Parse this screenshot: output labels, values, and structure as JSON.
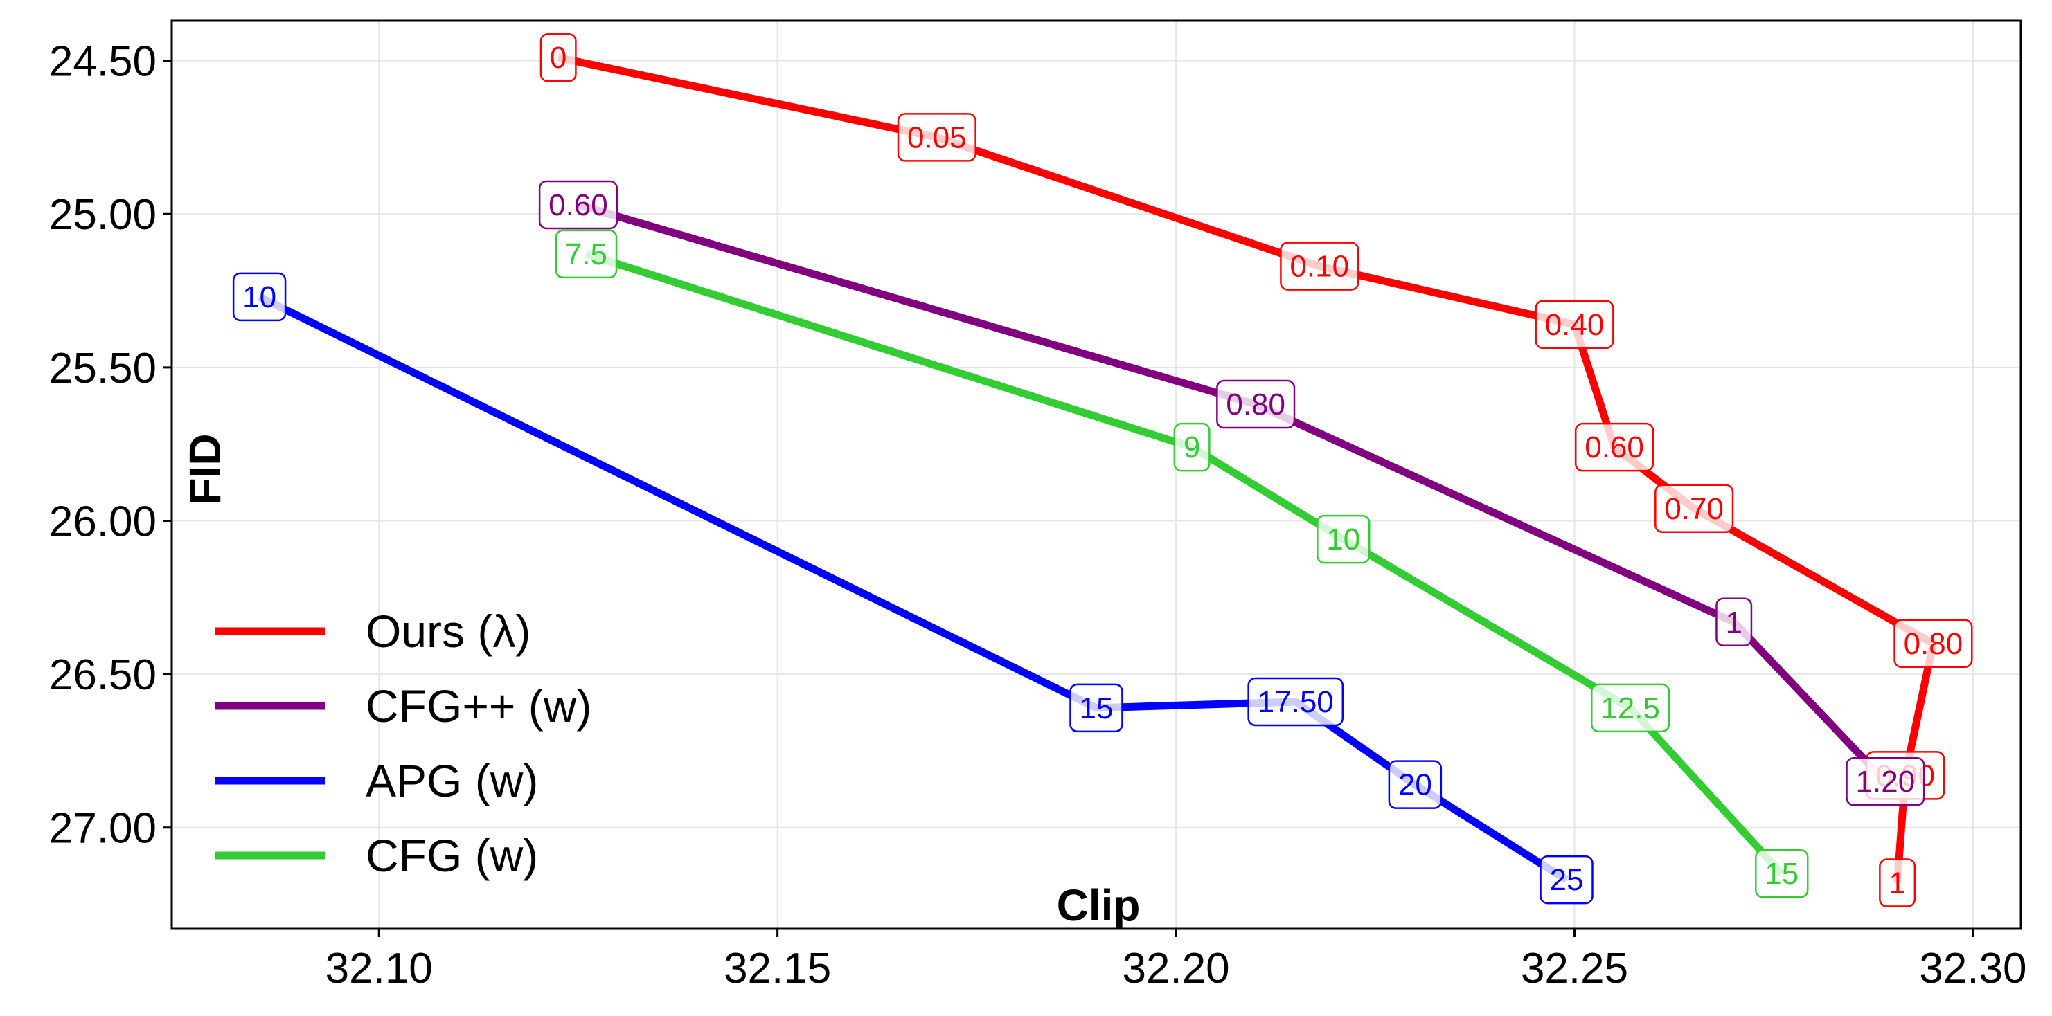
{
  "chart_data": {
    "type": "line",
    "title": "",
    "xlabel": "Clip",
    "ylabel": "FID",
    "xlim": [
      32.074,
      32.306
    ],
    "ylim": [
      27.33,
      24.37
    ],
    "y_inverted": true,
    "grid": true,
    "legend_position": "lower-left",
    "xticks": [
      "32.10",
      "32.15",
      "32.20",
      "32.25",
      "32.30"
    ],
    "yticks": [
      "24.50",
      "25.00",
      "25.50",
      "26.00",
      "26.50",
      "27.00"
    ],
    "series": [
      {
        "name": "Ours (λ)",
        "color": "#ff0000",
        "points": [
          {
            "x": 32.1225,
            "y": 24.49,
            "label": "0"
          },
          {
            "x": 32.17,
            "y": 24.75,
            "label": "0.05"
          },
          {
            "x": 32.218,
            "y": 25.17,
            "label": "0.10"
          },
          {
            "x": 32.25,
            "y": 25.36,
            "label": "0.40"
          },
          {
            "x": 32.255,
            "y": 25.76,
            "label": "0.60"
          },
          {
            "x": 32.265,
            "y": 25.96,
            "label": "0.70"
          },
          {
            "x": 32.295,
            "y": 26.4,
            "label": "0.80"
          },
          {
            "x": 32.2915,
            "y": 26.83,
            "label": "0.90"
          },
          {
            "x": 32.2905,
            "y": 27.18,
            "label": "1"
          }
        ]
      },
      {
        "name": "CFG++ (w)",
        "color": "#800080",
        "points": [
          {
            "x": 32.125,
            "y": 24.97,
            "label": "0.60"
          },
          {
            "x": 32.21,
            "y": 25.62,
            "label": "0.80"
          },
          {
            "x": 32.27,
            "y": 26.33,
            "label": "1"
          },
          {
            "x": 32.289,
            "y": 26.85,
            "label": "1.20"
          }
        ]
      },
      {
        "name": "APG (w)",
        "color": "#0000ff",
        "points": [
          {
            "x": 32.085,
            "y": 25.27,
            "label": "10"
          },
          {
            "x": 32.19,
            "y": 26.61,
            "label": "15"
          },
          {
            "x": 32.215,
            "y": 26.59,
            "label": "17.50"
          },
          {
            "x": 32.23,
            "y": 26.86,
            "label": "20"
          },
          {
            "x": 32.249,
            "y": 27.17,
            "label": "25"
          }
        ]
      },
      {
        "name": "CFG (w)",
        "color": "#33cc33",
        "points": [
          {
            "x": 32.126,
            "y": 25.13,
            "label": "7.5"
          },
          {
            "x": 32.202,
            "y": 25.76,
            "label": "9"
          },
          {
            "x": 32.221,
            "y": 26.06,
            "label": "10"
          },
          {
            "x": 32.257,
            "y": 26.61,
            "label": "12.5"
          },
          {
            "x": 32.276,
            "y": 27.15,
            "label": "15"
          }
        ]
      }
    ]
  }
}
